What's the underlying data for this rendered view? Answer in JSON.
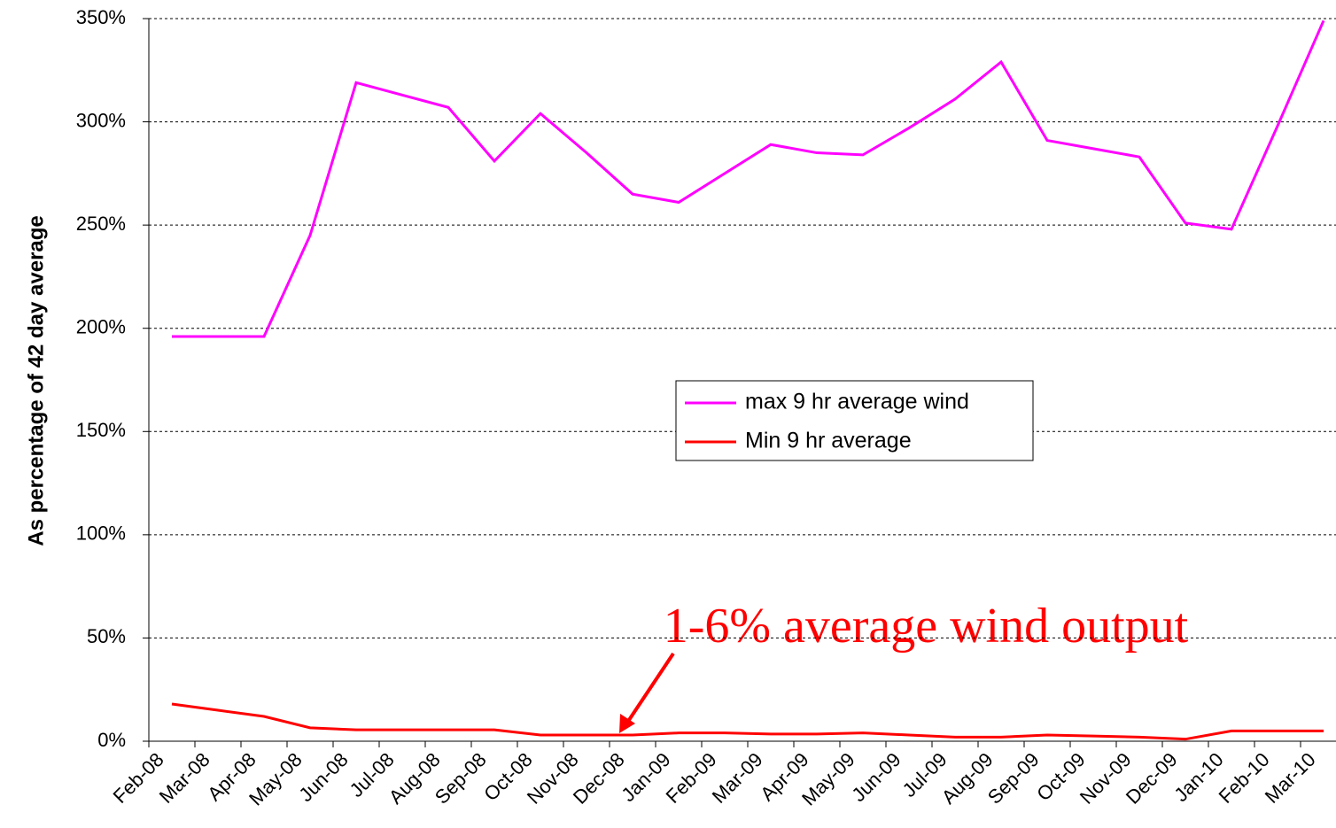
{
  "chart_data": {
    "type": "line",
    "y_label": "As percentage of 42 day average",
    "annotation": "1-6% average wind output",
    "categories": [
      "Feb-08",
      "Mar-08",
      "Apr-08",
      "May-08",
      "Jun-08",
      "Jul-08",
      "Aug-08",
      "Sep-08",
      "Oct-08",
      "Nov-08",
      "Dec-08",
      "Jan-09",
      "Feb-09",
      "Mar-09",
      "Apr-09",
      "May-09",
      "Jun-09",
      "Jul-09",
      "Aug-09",
      "Sep-09",
      "Oct-09",
      "Nov-09",
      "Dec-09",
      "Jan-10",
      "Feb-10",
      "Mar-10"
    ],
    "series": [
      {
        "name": "max 9 hr average wind",
        "color": "#ff00ff",
        "values": [
          196,
          196,
          196,
          245,
          319,
          313,
          307,
          281,
          304,
          285,
          265,
          261,
          275,
          289,
          285,
          284,
          297,
          311,
          329,
          291,
          287,
          283,
          251,
          248,
          298,
          349
        ]
      },
      {
        "name": "Min 9 hr average",
        "color": "#ff0000",
        "values": [
          18,
          15,
          12,
          6.5,
          5.5,
          5.5,
          5.5,
          5.5,
          3,
          3,
          3,
          4,
          4,
          3.5,
          3.5,
          4,
          3,
          2,
          2,
          3,
          2.5,
          2,
          1,
          5,
          5,
          5
        ]
      }
    ],
    "ylim": [
      0,
      350
    ],
    "yticks": [
      {
        "value": 0,
        "label": "0%"
      },
      {
        "value": 50,
        "label": "50%"
      },
      {
        "value": 100,
        "label": "100%"
      },
      {
        "value": 150,
        "label": "150%"
      },
      {
        "value": 200,
        "label": "200%"
      },
      {
        "value": 250,
        "label": "250%"
      },
      {
        "value": 300,
        "label": "300%"
      },
      {
        "value": 350,
        "label": "350%"
      }
    ],
    "grid": true
  }
}
